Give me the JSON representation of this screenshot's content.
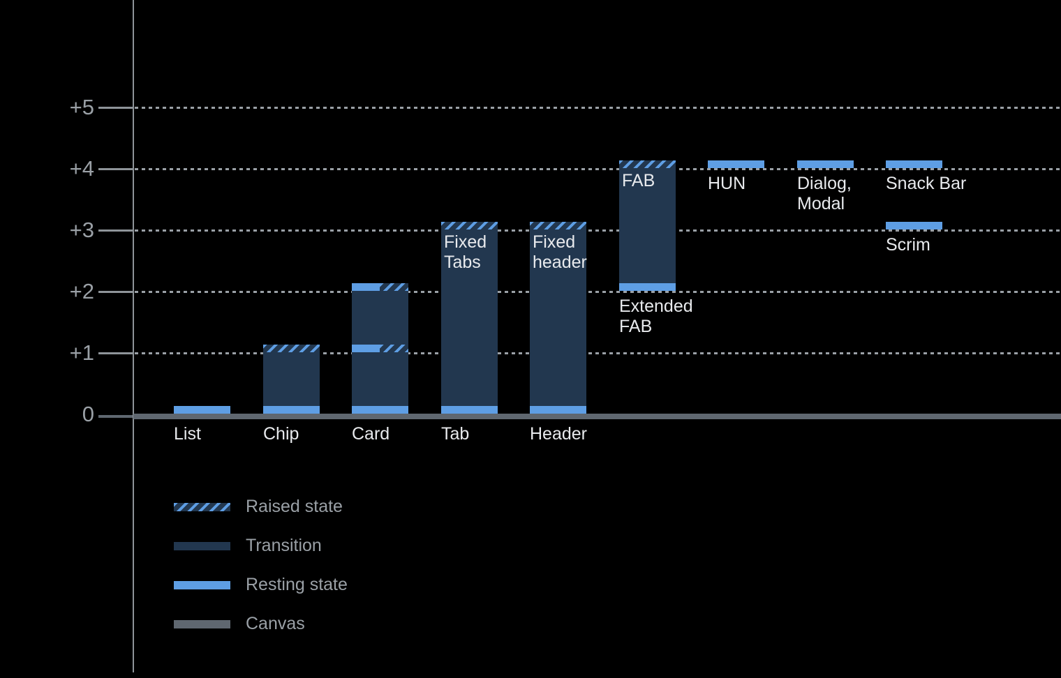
{
  "colors": {
    "background": "#000000",
    "resting": "#5E9EE4",
    "transition": "#22374F",
    "canvas_line": "#5F6770",
    "axis": "#8E9499",
    "gridline": "#9AA0A6",
    "label": "#E8EAED",
    "muted_label": "#9AA0A6"
  },
  "chart_data": {
    "type": "bar",
    "description": "Elevation levels of UI components above the canvas",
    "y_axis": {
      "range": [
        0,
        5
      ],
      "grid": "dotted",
      "ticks": [
        {
          "label": "+5",
          "value": 5
        },
        {
          "label": "+4",
          "value": 4
        },
        {
          "label": "+3",
          "value": 3
        },
        {
          "label": "+2",
          "value": 2
        },
        {
          "label": "+1",
          "value": 1
        },
        {
          "label": "0",
          "value": 0
        }
      ]
    },
    "bars": [
      {
        "id": "list",
        "col": 0,
        "axis_label": "List",
        "resting": 0
      },
      {
        "id": "chip",
        "col": 1,
        "axis_label": "Chip",
        "resting": 0,
        "transition": [
          0,
          1
        ],
        "raised": [
          1
        ]
      },
      {
        "id": "card",
        "col": 2,
        "axis_label": "Card",
        "resting": 0,
        "transition": [
          0,
          2
        ],
        "resting_raised": [
          1,
          2
        ]
      },
      {
        "id": "tab",
        "col": 3,
        "axis_label": "Tab",
        "inner_label": "Fixed\nTabs",
        "resting": 0,
        "transition": [
          0,
          3
        ],
        "raised": [
          3
        ]
      },
      {
        "id": "header",
        "col": 4,
        "axis_label": "Header",
        "inner_label": "Fixed\nheader",
        "resting": 0,
        "transition": [
          0,
          3
        ],
        "raised": [
          3
        ]
      },
      {
        "id": "fab",
        "col": 5,
        "inner_label": "FAB",
        "below_label": "Extended\nFAB",
        "below_at": 2,
        "resting": 2,
        "transition": [
          2,
          4
        ],
        "raised": [
          4
        ]
      },
      {
        "id": "hun",
        "col": 6,
        "below_label": "HUN",
        "below_at": 4,
        "resting": 4
      },
      {
        "id": "dialog-modal",
        "col": 7,
        "below_label": "Dialog,\nModal",
        "below_at": 4,
        "resting": 4
      },
      {
        "id": "snack-bar",
        "col": 8,
        "below_label": "Snack Bar",
        "below_at": 4,
        "resting": 4
      },
      {
        "id": "scrim",
        "col": 8,
        "below_label": "Scrim",
        "below_at": 3,
        "resting": 3
      }
    ],
    "legend": [
      {
        "id": "raised",
        "label": "Raised state"
      },
      {
        "id": "transition",
        "label": "Transition"
      },
      {
        "id": "resting",
        "label": "Resting state"
      },
      {
        "id": "canvas",
        "label": "Canvas"
      }
    ]
  }
}
